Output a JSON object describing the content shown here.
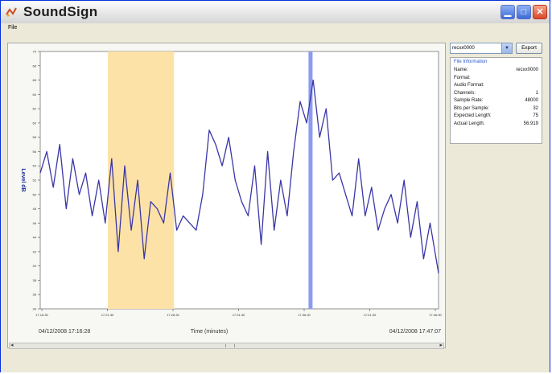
{
  "window": {
    "title": "SoundSign",
    "controls": [
      "minimize-icon",
      "maximize-icon",
      "close-icon"
    ]
  },
  "menu": {
    "file_label": "File"
  },
  "chart_data": {
    "type": "line",
    "title": "",
    "xlabel": "Time (minutes)",
    "ylabel": "Level dB",
    "start_label": "04/12/2008 17:16:28",
    "end_label": "04/12/2008 17:47:07",
    "ylim": [
      34,
      70
    ],
    "yticks": [
      70,
      68,
      66,
      64,
      62,
      60,
      58,
      56,
      54,
      52,
      50,
      48,
      46,
      44,
      42,
      40,
      38,
      36,
      34
    ],
    "xticks": [
      "17:16:30",
      "17:21:30",
      "17:26:30",
      "17:31:30",
      "17:36:30",
      "17:41:30",
      "17:46:30"
    ],
    "xlim": [
      0,
      30.65
    ],
    "highlight": {
      "start": 5.2,
      "end": 10.3,
      "color": "#fde2a8"
    },
    "marker": {
      "at": 20.8,
      "color": "#8c9bf0"
    },
    "series": [
      {
        "x": [
          0,
          0.5,
          1,
          1.5,
          2,
          2.5,
          3,
          3.5,
          4,
          4.5,
          5,
          5.5,
          6,
          6.5,
          7,
          7.5,
          8,
          8.5,
          9,
          9.5,
          10,
          10.5,
          11,
          11.5,
          12,
          12.5,
          13,
          13.5,
          14,
          14.5,
          15,
          15.5,
          16,
          16.5,
          17,
          17.5,
          18,
          18.5,
          19,
          19.5,
          20,
          20.5,
          21,
          21.5,
          22,
          22.5,
          23,
          23.5,
          24,
          24.5,
          25,
          25.5,
          26,
          26.5,
          27,
          27.5,
          28,
          28.5,
          29,
          29.5,
          30,
          30.65
        ],
        "y": [
          53,
          56,
          51,
          57,
          48,
          55,
          50,
          53,
          47,
          52,
          46,
          55,
          42,
          54,
          45,
          52,
          41,
          49,
          48,
          46,
          53,
          45,
          47,
          46,
          45,
          50,
          59,
          57,
          54,
          58,
          52,
          49,
          47,
          54,
          43,
          56,
          45,
          52,
          47,
          56,
          63,
          60,
          66,
          58,
          62,
          52,
          53,
          50,
          47,
          55,
          47,
          51,
          45,
          48,
          50,
          46,
          52,
          44,
          49,
          41,
          46,
          39
        ]
      }
    ]
  },
  "sidebar": {
    "file_select": "recxx0000",
    "export_label": "Export",
    "info_header": "File Information",
    "fields": [
      {
        "key": "Name:",
        "value": "recxx0000"
      },
      {
        "key": "Format:",
        "value": ""
      },
      {
        "key": "Audio Format:",
        "value": ""
      },
      {
        "key": "Channels:",
        "value": "1"
      },
      {
        "key": "Sample Rate:",
        "value": "48000"
      },
      {
        "key": "Bits per Sample:",
        "value": "32"
      },
      {
        "key": "Expected Length:",
        "value": "75"
      },
      {
        "key": "Actual Length:",
        "value": "56.919"
      }
    ]
  }
}
